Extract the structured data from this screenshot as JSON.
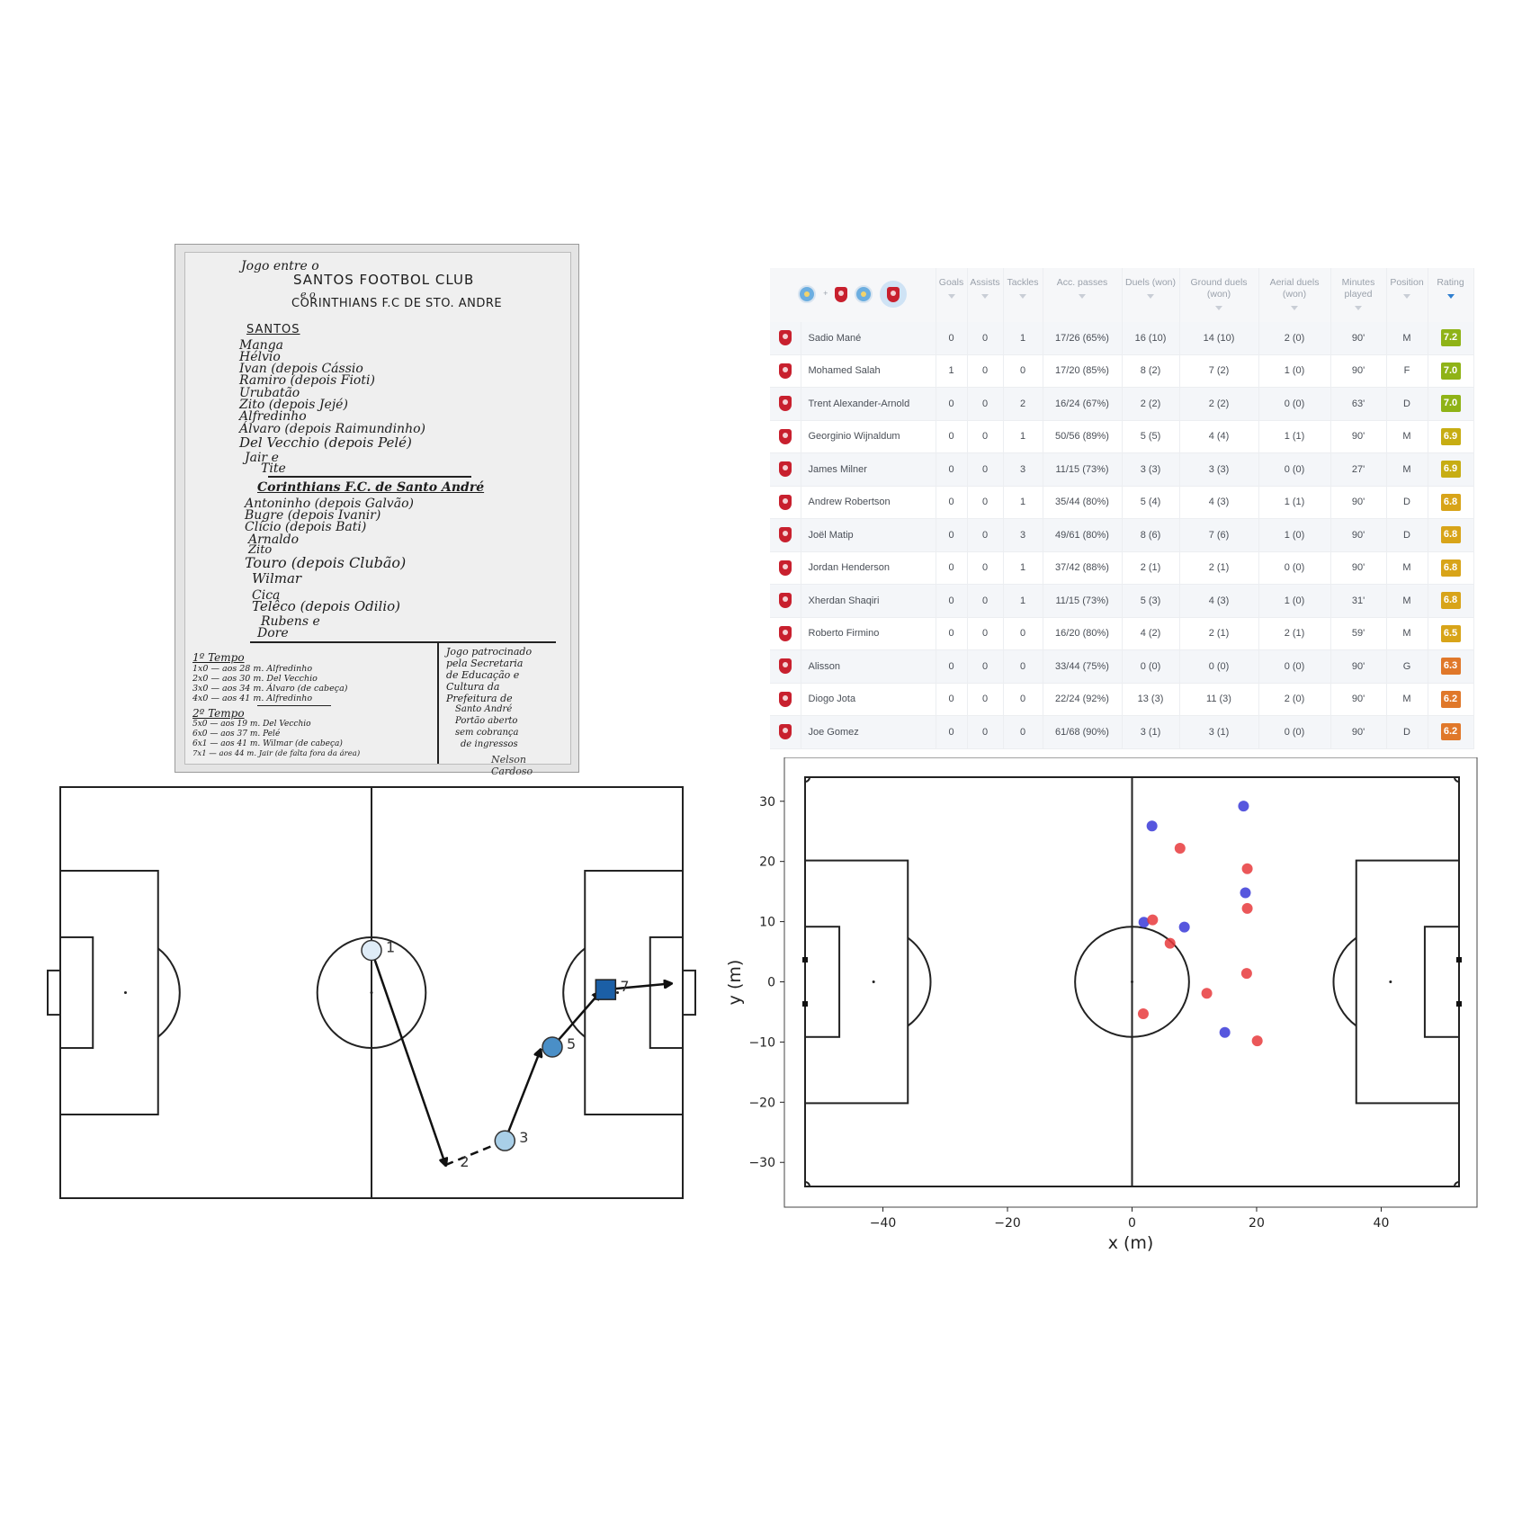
{
  "scoresheet": {
    "heading": "Jogo entre o",
    "team1_title": "SANTOS  FOOTBOL  CLUB",
    "connector": "e o",
    "team2_title": "CORINTHIANS F.C DE STO. ANDRE",
    "santos_label": "SANTOS",
    "santos_players": [
      "Manga",
      "Hélvio",
      "Ivan (depois Cássio",
      "Ramiro (depois Fioti)",
      "Urubatão",
      "Zito (depois Jejé)",
      "Alfredinho",
      "Álvaro (depois Raimundinho)",
      "Del Vecchio (depois Pelé)",
      "Jair e",
      "Tite"
    ],
    "corinthians_label": "Corinthians F.C. de Santo André",
    "corinthians_players": [
      "Antoninho (depois Galvão)",
      "Bugre (depois Ivanir)",
      "Clício (depois Bati)",
      "Arnaldo",
      "Zito",
      "Touro (depois Clubão)",
      "Wilmar",
      "Cica",
      "Telêco (depois Odilio)",
      "Rubens e",
      "Dore"
    ],
    "first_half_label": "1º Tempo",
    "first_half_goals": [
      "1x0 — aos 28 m. Alfredinho",
      "2x0 — aos 30 m. Del Vecchio",
      "3x0 — aos 34 m. Álvaro (de cabeça)",
      "4x0 — aos 41 m. Alfredinho"
    ],
    "second_half_label": "2º Tempo",
    "second_half_goals": [
      "5x0 — aos 19 m. Del Vecchio",
      "6x0 — aos 37 m. Pelé",
      "6x1 — aos 41 m. Wilmar (de cabeça)",
      "7x1 — aos 44 m. Jair (de falta fora da área)"
    ],
    "note_lines": [
      "Jogo patrocinado",
      "pela Secretaria",
      "de Educação e",
      "Cultura da",
      "Prefeitura de",
      "Santo André",
      "Portão aberto",
      "sem cobrança",
      "de ingressos"
    ],
    "signature": "Nelson Cardoso"
  },
  "stats_table": {
    "headers": [
      "Goals",
      "Assists",
      "Tackles",
      "Acc. passes",
      "Duels (won)",
      "Ground duels (won)",
      "Aerial duels (won)",
      "Minutes played",
      "Position",
      "Rating"
    ],
    "rows": [
      [
        "Sadio Mané",
        "0",
        "0",
        "1",
        "17/26 (65%)",
        "16 (10)",
        "14 (10)",
        "2 (0)",
        "90'",
        "M",
        "7.2"
      ],
      [
        "Mohamed Salah",
        "1",
        "0",
        "0",
        "17/20 (85%)",
        "8 (2)",
        "7 (2)",
        "1 (0)",
        "90'",
        "F",
        "7.0"
      ],
      [
        "Trent Alexander-Arnold",
        "0",
        "0",
        "2",
        "16/24 (67%)",
        "2 (2)",
        "2 (2)",
        "0 (0)",
        "63'",
        "D",
        "7.0"
      ],
      [
        "Georginio Wijnaldum",
        "0",
        "0",
        "1",
        "50/56 (89%)",
        "5 (5)",
        "4 (4)",
        "1 (1)",
        "90'",
        "M",
        "6.9"
      ],
      [
        "James Milner",
        "0",
        "0",
        "3",
        "11/15 (73%)",
        "3 (3)",
        "3 (3)",
        "0 (0)",
        "27'",
        "M",
        "6.9"
      ],
      [
        "Andrew Robertson",
        "0",
        "0",
        "1",
        "35/44 (80%)",
        "5 (4)",
        "4 (3)",
        "1 (1)",
        "90'",
        "D",
        "6.8"
      ],
      [
        "Joël Matip",
        "0",
        "0",
        "3",
        "49/61 (80%)",
        "8 (6)",
        "7 (6)",
        "1 (0)",
        "90'",
        "D",
        "6.8"
      ],
      [
        "Jordan Henderson",
        "0",
        "0",
        "1",
        "37/42 (88%)",
        "2 (1)",
        "2 (1)",
        "0 (0)",
        "90'",
        "M",
        "6.8"
      ],
      [
        "Xherdan Shaqiri",
        "0",
        "0",
        "1",
        "11/15 (73%)",
        "5 (3)",
        "4 (3)",
        "1 (0)",
        "31'",
        "M",
        "6.8"
      ],
      [
        "Roberto Firmino",
        "0",
        "0",
        "0",
        "16/20 (80%)",
        "4 (2)",
        "2 (1)",
        "2 (1)",
        "59'",
        "M",
        "6.5"
      ],
      [
        "Alisson",
        "0",
        "0",
        "0",
        "33/44 (75%)",
        "0 (0)",
        "0 (0)",
        "0 (0)",
        "90'",
        "G",
        "6.3"
      ],
      [
        "Diogo Jota",
        "0",
        "0",
        "0",
        "22/24 (92%)",
        "13 (3)",
        "11 (3)",
        "2 (0)",
        "90'",
        "M",
        "6.2"
      ],
      [
        "Joe Gomez",
        "0",
        "0",
        "0",
        "61/68 (90%)",
        "3 (1)",
        "3 (1)",
        "0 (0)",
        "90'",
        "D",
        "6.2"
      ]
    ],
    "rating_colors": {
      "7.2": "#8fb317",
      "7.0": "#8fb317",
      "6.9": "#c7ad13",
      "6.8": "#d8a419",
      "6.5": "#d8a419",
      "6.3": "#e0782a",
      "6.2": "#e0782a"
    },
    "plus_sign": "+"
  },
  "pass_sequence": {
    "nodes": [
      {
        "label": "1",
        "x": 0,
        "y": 7,
        "fill": "#dfecf7",
        "shape": "circle"
      },
      {
        "label": "2",
        "x": 12.5,
        "y": -28.5,
        "shape": "arrow-tip"
      },
      {
        "label": "3",
        "x": 22.5,
        "y": -24.5,
        "fill": "#a9cfe8",
        "shape": "circle"
      },
      {
        "label": "5",
        "x": 30.5,
        "y": -9,
        "fill": "#4a8fc7",
        "shape": "circle"
      },
      {
        "label": "7",
        "x": 39.5,
        "y": 0.5,
        "fill": "#1b5fa6",
        "shape": "square"
      }
    ],
    "segments": [
      {
        "from": [
          0,
          7
        ],
        "to": [
          12.5,
          -28.5
        ],
        "style": "solid"
      },
      {
        "from": [
          12.5,
          -28.5
        ],
        "to": [
          22.5,
          -24.5
        ],
        "style": "dashed"
      },
      {
        "from": [
          22.5,
          -24.5
        ],
        "to": [
          28.5,
          -9.5
        ],
        "style": "solid"
      },
      {
        "from": [
          30.5,
          -9
        ],
        "to": [
          38.5,
          0
        ],
        "style": "solid"
      },
      {
        "from": [
          39.5,
          0.5
        ],
        "to": [
          50.5,
          1.5
        ],
        "style": "solid"
      }
    ]
  },
  "chart_data": {
    "type": "scatter",
    "xlabel": "x (m)",
    "ylabel": "y (m)",
    "xlim": [
      -52.5,
      52.5
    ],
    "ylim": [
      -34,
      34
    ],
    "xticks": [
      -40,
      -20,
      0,
      20,
      40
    ],
    "yticks": [
      30,
      20,
      10,
      0,
      -10,
      -20,
      -30
    ],
    "grid": false,
    "series": [
      {
        "color": "#3a3ad8",
        "points": [
          [
            3.2,
            25.9
          ],
          [
            17.9,
            29.2
          ],
          [
            18.2,
            14.8
          ],
          [
            1.9,
            9.9
          ],
          [
            8.4,
            9.1
          ],
          [
            14.9,
            -8.4
          ]
        ]
      },
      {
        "color": "#e8393c",
        "points": [
          [
            7.7,
            22.2
          ],
          [
            18.5,
            18.8
          ],
          [
            18.5,
            12.2
          ],
          [
            3.3,
            10.3
          ],
          [
            6.1,
            6.4
          ],
          [
            18.4,
            1.4
          ],
          [
            12.0,
            -1.9
          ],
          [
            1.8,
            -5.3
          ],
          [
            20.1,
            -9.8
          ]
        ]
      }
    ]
  }
}
